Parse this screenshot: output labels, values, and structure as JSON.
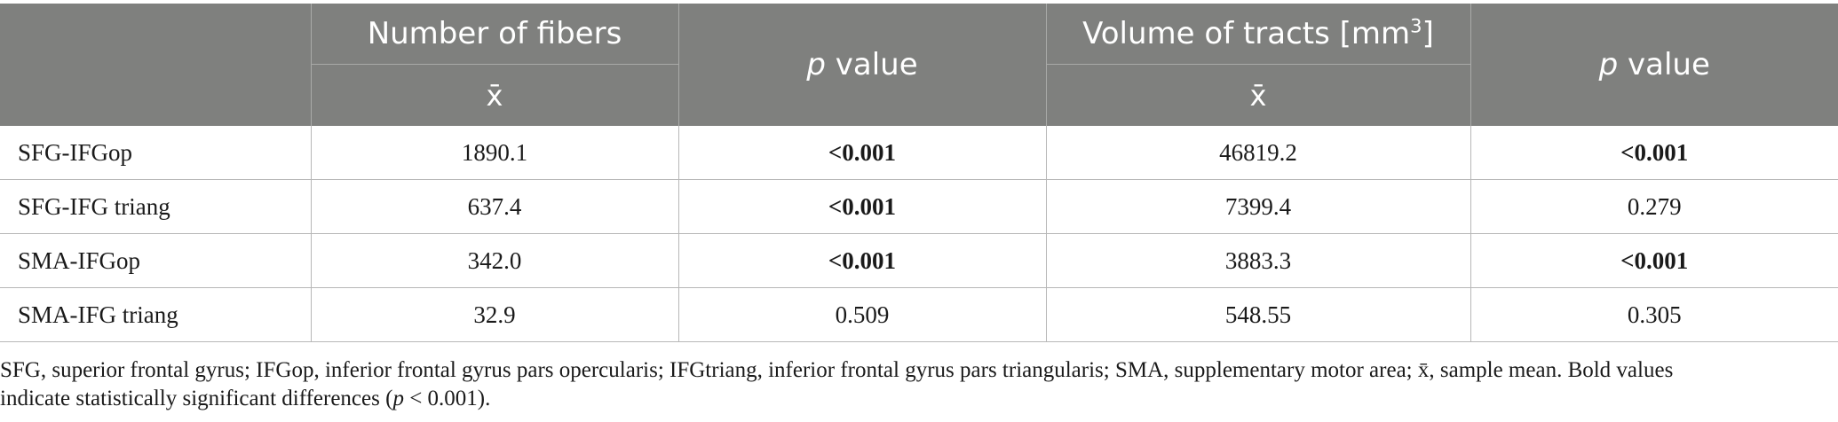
{
  "header": {
    "col_fibers": "Number of fibers",
    "col_pvalue_1_italic": "p",
    "col_pvalue_1_rest": " value",
    "col_volume_main": "Volume of tracts [mm",
    "col_volume_sup": "3",
    "col_volume_close": "]",
    "col_pvalue_2_italic": "p",
    "col_pvalue_2_rest": " value",
    "sub_fibers": "x̄",
    "sub_volume": "x̄"
  },
  "rows": [
    {
      "label": "SFG-IFGop",
      "fibers": "1890.1",
      "p1": "<0.001",
      "volume": "46819.2",
      "p2": "<0.001"
    },
    {
      "label": "SFG-IFG triang",
      "fibers": "637.4",
      "p1": "<0.001",
      "volume": "7399.4",
      "p2": "0.279"
    },
    {
      "label": "SMA-IFGop",
      "fibers": "342.0",
      "p1": "<0.001",
      "volume": "3883.3",
      "p2": "<0.001"
    },
    {
      "label": "SMA-IFG triang",
      "fibers": "32.9",
      "p1": "0.509",
      "volume": "548.55",
      "p2": "0.305"
    }
  ],
  "footnote": {
    "line1": "SFG, superior frontal gyrus; IFGop, inferior frontal gyrus pars opercularis; IFGtriang, inferior frontal gyrus pars triangularis; SMA, supplementary motor area; x̄, sample mean. Bold values",
    "line2_pre": "indicate statistically significant differences (",
    "line2_p": "p",
    "line2_post": " < 0.001)."
  }
}
